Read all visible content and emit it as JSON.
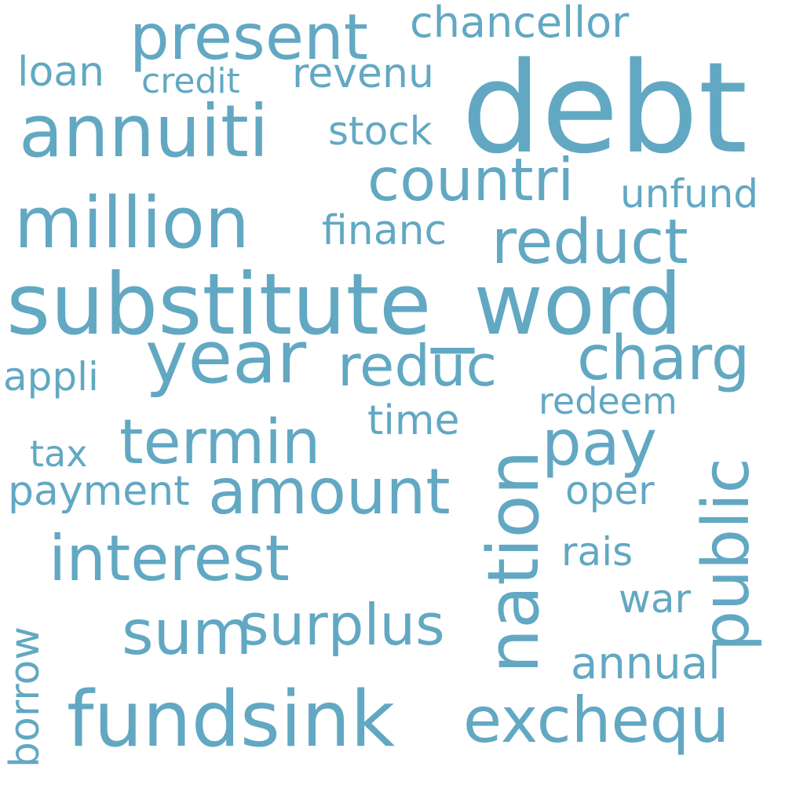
{
  "wordcloud": {
    "color": "#62a8c3",
    "words": {
      "debt": "debt",
      "substitute_word": "substitute_word",
      "annuiti": "annuiti",
      "million": "million",
      "present": "present",
      "countri": "countri",
      "reduct": "reduct",
      "year": "year",
      "nation": "nation",
      "fundsink": "fundsink",
      "exchequ": "exchequ",
      "amount": "amount",
      "interest": "interest",
      "termin": "termin",
      "pay": "pay",
      "public": "public",
      "surplus": "surplus",
      "sum": "sum",
      "reduc": "reduc",
      "charg": "charg",
      "chancellor": "chancellor",
      "loan": "loan",
      "credit": "credit",
      "revenu": "revenu",
      "stock": "stock",
      "unfund": "unfund",
      "financ": "financ",
      "appli": "appli",
      "time": "time",
      "redeem": "redeem",
      "tax": "tax",
      "payment": "payment",
      "oper": "oper",
      "rais": "rais",
      "war": "war",
      "annual": "annual",
      "borrow": "borrow"
    }
  }
}
